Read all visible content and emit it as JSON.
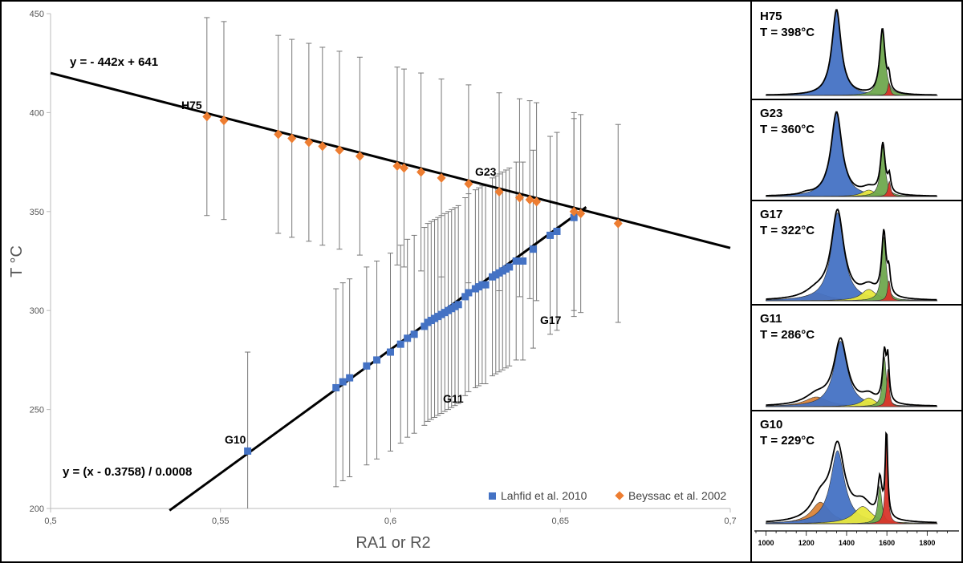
{
  "chart_data": [
    {
      "type": "scatter",
      "xlabel": "RA1  or  R2",
      "ylabel": "T °C",
      "xlim": [
        0.5,
        0.7
      ],
      "ylim": [
        200,
        450
      ],
      "x_ticks": [
        "0,5",
        "0,55",
        "0,6",
        "0,65",
        "0,7"
      ],
      "y_ticks": [
        "200",
        "250",
        "300",
        "350",
        "400",
        "450"
      ],
      "error_bar": 50,
      "legend_position": "bottom-right",
      "series": [
        {
          "name": "Lahfid et al. 2010",
          "color": "#4472C4",
          "marker": "square",
          "x": [
            0.558,
            0.584,
            0.586,
            0.588,
            0.593,
            0.596,
            0.6,
            0.603,
            0.605,
            0.607,
            0.61,
            0.611,
            0.612,
            0.613,
            0.614,
            0.615,
            0.616,
            0.617,
            0.618,
            0.619,
            0.62,
            0.622,
            0.623,
            0.625,
            0.626,
            0.627,
            0.628,
            0.63,
            0.631,
            0.632,
            0.633,
            0.634,
            0.635,
            0.637,
            0.639,
            0.642,
            0.647,
            0.649,
            0.654
          ],
          "y": [
            229,
            261,
            264,
            266,
            272,
            275,
            279,
            283,
            286,
            288,
            292,
            294,
            295,
            296,
            297,
            298,
            299,
            300,
            301,
            302,
            303,
            307,
            309,
            311,
            312,
            313,
            313,
            317,
            318,
            319,
            320,
            321,
            322,
            325,
            325,
            331,
            338,
            340,
            347
          ]
        },
        {
          "name": "Beyssac et al. 2002",
          "color": "#ED7D31",
          "marker": "diamond",
          "x": [
            0.546,
            0.551,
            0.567,
            0.571,
            0.576,
            0.58,
            0.585,
            0.591,
            0.602,
            0.604,
            0.609,
            0.615,
            0.623,
            0.632,
            0.638,
            0.641,
            0.643,
            0.654,
            0.656,
            0.667
          ],
          "y": [
            398,
            396,
            389,
            387,
            385,
            383,
            381,
            378,
            373,
            372,
            370,
            367,
            364,
            360,
            357,
            356,
            355,
            350,
            349,
            344
          ]
        }
      ],
      "fits": [
        {
          "equation": "y =  - 442x + 641",
          "slope": -442,
          "intercept": 641,
          "x_range": [
            0.5,
            0.7
          ]
        },
        {
          "equation": "y =  (x - 0.3758) / 0.0008",
          "slope": 1250,
          "intercept": -469.75,
          "x_range": [
            0.535,
            0.6576
          ]
        }
      ],
      "annotations": [
        {
          "text": "H75",
          "x": 0.546,
          "y": 398
        },
        {
          "text": "G23",
          "x": 0.623,
          "y": 364
        },
        {
          "text": "G17",
          "x": 0.652,
          "y": 310
        },
        {
          "text": "G11",
          "x": 0.608,
          "y": 260
        },
        {
          "text": "G10",
          "x": 0.558,
          "y": 229
        }
      ]
    },
    {
      "type": "line",
      "xlim": [
        950,
        1950
      ],
      "x_ticks": [
        "1000",
        "1200",
        "1400",
        "1600",
        "1800"
      ],
      "panels": [
        {
          "label": "H75",
          "temperature": "T = 398°C"
        },
        {
          "label": "G23",
          "temperature": "T = 360°C"
        },
        {
          "label": "G17",
          "temperature": "T = 322°C"
        },
        {
          "label": "G11",
          "temperature": "T = 286°C"
        },
        {
          "label": "G10",
          "temperature": "T = 229°C"
        }
      ],
      "band_colors": {
        "D1": "#4472C4",
        "D3": "#E8E83C",
        "D4": "#D9843A",
        "G": "#6FA84E",
        "D2": "#D9342A"
      }
    }
  ]
}
